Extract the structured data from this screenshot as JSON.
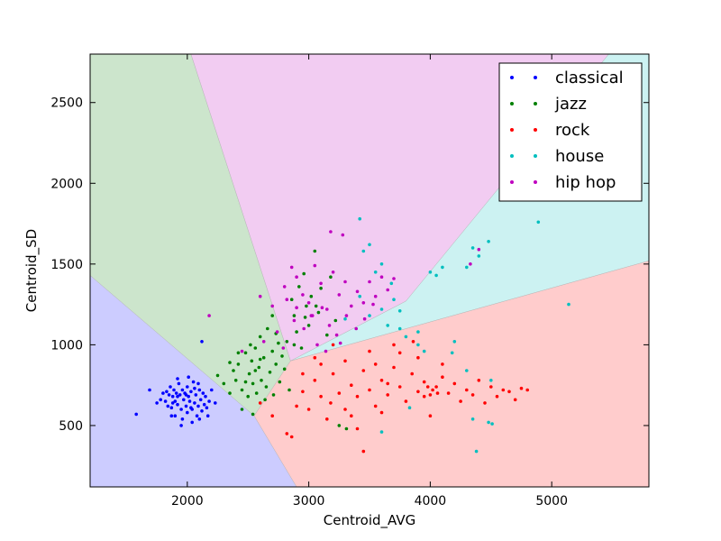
{
  "chart_data": {
    "type": "scatter",
    "xlabel": "Centroid_AVG",
    "ylabel": "Centroid_SD",
    "xlim": [
      1200,
      5800
    ],
    "ylim": [
      120,
      2800
    ],
    "x_ticks": [
      2000,
      3000,
      4000,
      5000
    ],
    "y_ticks": [
      500,
      1000,
      1500,
      2000,
      2500
    ],
    "grid": false,
    "legend_position": "top-right",
    "regions": [
      {
        "class": "classical",
        "color": "#ccccff",
        "polygon": [
          [
            1200,
            1430
          ],
          [
            2550,
            560
          ],
          [
            2900,
            120
          ],
          [
            1200,
            120
          ]
        ]
      },
      {
        "class": "jazz",
        "color": "#cce5cc",
        "polygon": [
          [
            1200,
            2800
          ],
          [
            2030,
            2800
          ],
          [
            2850,
            900
          ],
          [
            2550,
            560
          ],
          [
            1200,
            1430
          ]
        ]
      },
      {
        "class": "hip hop",
        "color": "#f2ccf2",
        "polygon": [
          [
            2030,
            2800
          ],
          [
            5470,
            2800
          ],
          [
            3800,
            1270
          ],
          [
            2850,
            900
          ]
        ]
      },
      {
        "class": "house",
        "color": "#ccf2f2",
        "polygon": [
          [
            5470,
            2800
          ],
          [
            5800,
            2800
          ],
          [
            5800,
            1520
          ],
          [
            2850,
            900
          ],
          [
            3800,
            1270
          ]
        ]
      },
      {
        "class": "rock",
        "color": "#ffcccc",
        "polygon": [
          [
            2850,
            900
          ],
          [
            5800,
            1520
          ],
          [
            5800,
            120
          ],
          [
            2900,
            120
          ],
          [
            2550,
            560
          ]
        ]
      }
    ],
    "series": [
      {
        "name": "classical",
        "color": "#0000ff",
        "points": [
          [
            1580,
            570
          ],
          [
            1690,
            720
          ],
          [
            1750,
            640
          ],
          [
            1780,
            660
          ],
          [
            1800,
            700
          ],
          [
            1820,
            650
          ],
          [
            1840,
            620
          ],
          [
            1850,
            690
          ],
          [
            1860,
            740
          ],
          [
            1870,
            610
          ],
          [
            1880,
            680
          ],
          [
            1890,
            720
          ],
          [
            1900,
            650
          ],
          [
            1900,
            560
          ],
          [
            1910,
            700
          ],
          [
            1920,
            630
          ],
          [
            1930,
            760
          ],
          [
            1940,
            690
          ],
          [
            1950,
            600
          ],
          [
            1960,
            720
          ],
          [
            1960,
            540
          ],
          [
            1970,
            660
          ],
          [
            1980,
            700
          ],
          [
            1990,
            620
          ],
          [
            2000,
            740
          ],
          [
            2000,
            580
          ],
          [
            2010,
            680
          ],
          [
            2020,
            650
          ],
          [
            2030,
            710
          ],
          [
            2040,
            600
          ],
          [
            2050,
            770
          ],
          [
            2060,
            640
          ],
          [
            2070,
            690
          ],
          [
            2080,
            560
          ],
          [
            2090,
            620
          ],
          [
            2100,
            720
          ],
          [
            2110,
            660
          ],
          [
            2120,
            590
          ],
          [
            2130,
            700
          ],
          [
            2140,
            630
          ],
          [
            2150,
            680
          ],
          [
            2160,
            610
          ],
          [
            2180,
            650
          ],
          [
            2200,
            720
          ],
          [
            2230,
            640
          ],
          [
            1920,
            790
          ],
          [
            2010,
            800
          ],
          [
            2090,
            760
          ],
          [
            1870,
            560
          ],
          [
            1950,
            500
          ],
          [
            2040,
            520
          ],
          [
            2100,
            540
          ],
          [
            2120,
            1020
          ],
          [
            1830,
            710
          ],
          [
            2060,
            730
          ],
          [
            2170,
            560
          ],
          [
            1990,
            690
          ],
          [
            1880,
            640
          ],
          [
            2030,
            610
          ],
          [
            1920,
            680
          ]
        ]
      },
      {
        "name": "jazz",
        "color": "#008000",
        "points": [
          [
            2250,
            810
          ],
          [
            2300,
            760
          ],
          [
            2350,
            700
          ],
          [
            2380,
            840
          ],
          [
            2400,
            780
          ],
          [
            2420,
            880
          ],
          [
            2450,
            720
          ],
          [
            2480,
            950
          ],
          [
            2500,
            680
          ],
          [
            2510,
            820
          ],
          [
            2530,
            900
          ],
          [
            2540,
            760
          ],
          [
            2560,
            980
          ],
          [
            2570,
            700
          ],
          [
            2590,
            860
          ],
          [
            2600,
            1050
          ],
          [
            2610,
            780
          ],
          [
            2630,
            920
          ],
          [
            2650,
            740
          ],
          [
            2660,
            1100
          ],
          [
            2680,
            830
          ],
          [
            2700,
            960
          ],
          [
            2710,
            690
          ],
          [
            2730,
            880
          ],
          [
            2750,
            1010
          ],
          [
            2760,
            770
          ],
          [
            2780,
            930
          ],
          [
            2800,
            850
          ],
          [
            2820,
            1020
          ],
          [
            2840,
            720
          ],
          [
            2860,
            1280
          ],
          [
            2880,
            1180
          ],
          [
            2900,
            1080
          ],
          [
            2920,
            1360
          ],
          [
            2940,
            980
          ],
          [
            2960,
            1440
          ],
          [
            2980,
            1240
          ],
          [
            3000,
            1120
          ],
          [
            3020,
            1300
          ],
          [
            3050,
            1580
          ],
          [
            3080,
            1200
          ],
          [
            3100,
            1350
          ],
          [
            3150,
            1060
          ],
          [
            3180,
            1420
          ],
          [
            3220,
            1150
          ],
          [
            3250,
            500
          ],
          [
            3310,
            480
          ],
          [
            2480,
            770
          ],
          [
            2560,
            840
          ],
          [
            2640,
            660
          ],
          [
            2520,
            1000
          ],
          [
            2600,
            910
          ],
          [
            2700,
            1180
          ],
          [
            2450,
            600
          ],
          [
            2540,
            570
          ],
          [
            2730,
            1070
          ],
          [
            2880,
            1000
          ],
          [
            2970,
            1170
          ],
          [
            3060,
            1240
          ],
          [
            2350,
            890
          ],
          [
            2420,
            950
          ]
        ]
      },
      {
        "name": "rock",
        "color": "#ff0000",
        "points": [
          [
            2600,
            640
          ],
          [
            2700,
            560
          ],
          [
            2820,
            450
          ],
          [
            2860,
            430
          ],
          [
            2900,
            620
          ],
          [
            2950,
            710
          ],
          [
            3000,
            600
          ],
          [
            3050,
            780
          ],
          [
            3100,
            680
          ],
          [
            3150,
            540
          ],
          [
            3200,
            820
          ],
          [
            3250,
            700
          ],
          [
            3300,
            600
          ],
          [
            3350,
            750
          ],
          [
            3400,
            680
          ],
          [
            3450,
            840
          ],
          [
            3450,
            340
          ],
          [
            3500,
            720
          ],
          [
            3550,
            620
          ],
          [
            3600,
            780
          ],
          [
            3650,
            690
          ],
          [
            3700,
            860
          ],
          [
            3750,
            740
          ],
          [
            3800,
            650
          ],
          [
            3850,
            820
          ],
          [
            3900,
            710
          ],
          [
            3950,
            770
          ],
          [
            4000,
            690
          ],
          [
            4050,
            740
          ],
          [
            4100,
            800
          ],
          [
            4150,
            700
          ],
          [
            4200,
            760
          ],
          [
            4250,
            650
          ],
          [
            4300,
            720
          ],
          [
            4350,
            690
          ],
          [
            4400,
            780
          ],
          [
            4450,
            640
          ],
          [
            4500,
            740
          ],
          [
            4550,
            680
          ],
          [
            4600,
            720
          ],
          [
            4650,
            710
          ],
          [
            4700,
            660
          ],
          [
            4750,
            730
          ],
          [
            4800,
            720
          ],
          [
            3300,
            900
          ],
          [
            3500,
            960
          ],
          [
            3700,
            1000
          ],
          [
            3900,
            920
          ],
          [
            4100,
            880
          ],
          [
            3200,
            1000
          ],
          [
            3100,
            880
          ],
          [
            3600,
            580
          ],
          [
            3400,
            480
          ],
          [
            4000,
            560
          ],
          [
            3980,
            740
          ],
          [
            4020,
            720
          ],
          [
            3950,
            680
          ],
          [
            4060,
            700
          ],
          [
            3860,
            1020
          ],
          [
            3750,
            950
          ],
          [
            3180,
            640
          ],
          [
            3350,
            560
          ],
          [
            2950,
            820
          ],
          [
            3050,
            920
          ],
          [
            3550,
            880
          ],
          [
            3650,
            760
          ]
        ]
      },
      {
        "name": "house",
        "color": "#00bfbf",
        "points": [
          [
            3420,
            1780
          ],
          [
            3450,
            1580
          ],
          [
            3500,
            1620
          ],
          [
            3550,
            1450
          ],
          [
            3600,
            1500
          ],
          [
            3680,
            1380
          ],
          [
            3700,
            1280
          ],
          [
            3750,
            1100
          ],
          [
            3800,
            1050
          ],
          [
            3900,
            1000
          ],
          [
            3950,
            960
          ],
          [
            4000,
            1450
          ],
          [
            4050,
            1430
          ],
          [
            4100,
            1480
          ],
          [
            4200,
            1020
          ],
          [
            4300,
            1480
          ],
          [
            4350,
            1600
          ],
          [
            4400,
            1550
          ],
          [
            4480,
            1640
          ],
          [
            4890,
            1760
          ],
          [
            5140,
            1250
          ],
          [
            4380,
            340
          ],
          [
            4350,
            540
          ],
          [
            4480,
            520
          ],
          [
            4510,
            510
          ],
          [
            3500,
            1180
          ],
          [
            3600,
            1220
          ],
          [
            3650,
            1120
          ],
          [
            3750,
            1210
          ],
          [
            3900,
            1080
          ],
          [
            4180,
            950
          ],
          [
            4300,
            840
          ],
          [
            4500,
            780
          ],
          [
            3600,
            460
          ],
          [
            3830,
            610
          ],
          [
            3300,
            1160
          ],
          [
            3420,
            1300
          ]
        ]
      },
      {
        "name": "hip hop",
        "color": "#bf00bf",
        "points": [
          [
            2180,
            1180
          ],
          [
            2450,
            960
          ],
          [
            2600,
            1300
          ],
          [
            2700,
            1240
          ],
          [
            2800,
            1360
          ],
          [
            2860,
            1480
          ],
          [
            2900,
            1420
          ],
          [
            2950,
            1310
          ],
          [
            3000,
            1260
          ],
          [
            3050,
            1490
          ],
          [
            3100,
            1380
          ],
          [
            3150,
            1220
          ],
          [
            3200,
            1450
          ],
          [
            3250,
            1310
          ],
          [
            3300,
            1390
          ],
          [
            3350,
            1240
          ],
          [
            3400,
            1330
          ],
          [
            3450,
            1260
          ],
          [
            3500,
            1390
          ],
          [
            3550,
            1300
          ],
          [
            3600,
            1420
          ],
          [
            3650,
            1340
          ],
          [
            3700,
            1410
          ],
          [
            2820,
            1280
          ],
          [
            2880,
            1150
          ],
          [
            2960,
            1100
          ],
          [
            3030,
            1180
          ],
          [
            3110,
            1230
          ],
          [
            3170,
            1120
          ],
          [
            3230,
            1060
          ],
          [
            3310,
            1180
          ],
          [
            3390,
            1100
          ],
          [
            3460,
            1160
          ],
          [
            3530,
            1250
          ],
          [
            2740,
            1080
          ],
          [
            2790,
            980
          ],
          [
            3070,
            1000
          ],
          [
            3140,
            960
          ],
          [
            3260,
            1010
          ],
          [
            2630,
            1020
          ],
          [
            4330,
            1500
          ],
          [
            4400,
            1590
          ],
          [
            3180,
            1700
          ],
          [
            3280,
            1680
          ],
          [
            3020,
            1180
          ],
          [
            2900,
            1230
          ]
        ]
      }
    ]
  }
}
